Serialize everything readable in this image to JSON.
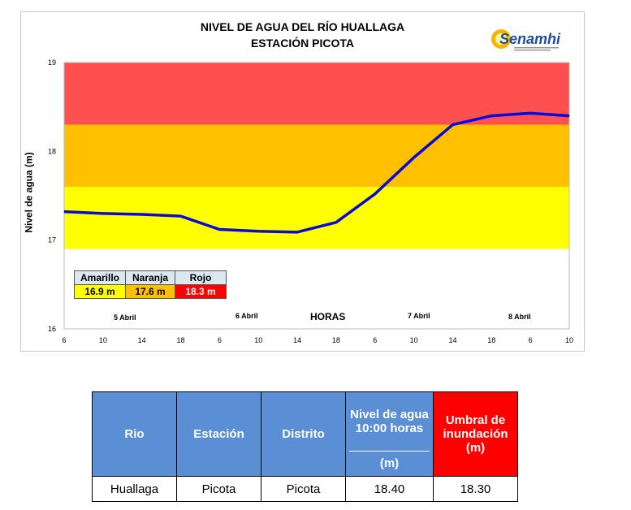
{
  "chart_data": {
    "type": "line",
    "title": "NIVEL DE AGUA DEL RÍO HUALLAGA",
    "subtitle": "ESTACIÓN PICOTA",
    "xlabel": "HORAS",
    "ylabel": "Nivel de agua  (m)",
    "ylim": [
      16,
      19
    ],
    "yticks": [
      "16",
      "17",
      "18",
      "19"
    ],
    "xticks": [
      "6",
      "10",
      "14",
      "18",
      "6",
      "10",
      "14",
      "18",
      "6",
      "10",
      "14",
      "18",
      "6",
      "10"
    ],
    "day_labels": [
      "5 Abril",
      "6 Abril",
      "7 Abril",
      "8 Abril"
    ],
    "series": [
      {
        "values": [
          17.32,
          17.3,
          17.29,
          17.27,
          17.12,
          17.1,
          17.09,
          17.2,
          17.52,
          17.93,
          18.3,
          18.4,
          18.43,
          18.4
        ],
        "color": "#0a0ad8"
      }
    ],
    "bands": [
      {
        "from": 16.9,
        "to": 17.6,
        "color": "#ffff00"
      },
      {
        "from": 17.6,
        "to": 18.3,
        "color": "#ffc000"
      },
      {
        "from": 18.3,
        "to": 19,
        "color": "#ff5050"
      }
    ],
    "grid": false
  },
  "logo_text": "Senamhi",
  "thresholds": {
    "headers": [
      "Amarillo",
      "Naranja",
      "Rojo"
    ],
    "values": [
      "16.9 m",
      "17.6 m",
      "18.3 m"
    ],
    "colors": [
      "#ffff00",
      "#ffc000",
      "#ff0000"
    ]
  },
  "table": {
    "headers": [
      "Rio",
      "Estación",
      "Distrito",
      "Nivel de agua 10:00 horas",
      "Umbral de inundación (m)"
    ],
    "nivel_unit": "(m)",
    "row": [
      "Huallaga",
      "Picota",
      "Picota",
      "18.40",
      "18.30"
    ]
  }
}
